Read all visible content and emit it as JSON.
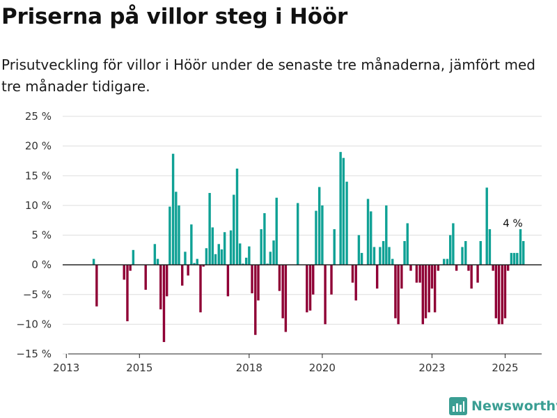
{
  "header": {
    "title": "Priserna på villor steg i Höör",
    "subtitle": "Prisutveckling för villor i Höör under de senaste tre månaderna, jämfört med tre månader tidigare."
  },
  "brand": {
    "name": "Newsworthy",
    "icon": "newsworthy-logo-icon",
    "color": "#3a9e93"
  },
  "colors": {
    "positive": "#0fa195",
    "negative": "#8f0035",
    "grid": "#dddddd",
    "axis": "#222222"
  },
  "chart_data": {
    "type": "bar",
    "title": "Priserna på villor steg i Höör",
    "subtitle": "Prisutveckling för villor i Höör under de senaste tre månaderna, jämfört med tre månader tidigare.",
    "xlabel": "",
    "ylabel": "",
    "ylim": [
      -15,
      25
    ],
    "xlim": [
      2012.9,
      2026.0
    ],
    "grid": true,
    "legend": "none",
    "y_ticks": [
      {
        "value": 25,
        "label": "25 %"
      },
      {
        "value": 20,
        "label": "20 %"
      },
      {
        "value": 15,
        "label": "15 %"
      },
      {
        "value": 10,
        "label": "10 %"
      },
      {
        "value": 5,
        "label": "5 %"
      },
      {
        "value": 0,
        "label": "0 %"
      },
      {
        "value": -5,
        "label": "−5 %"
      },
      {
        "value": -10,
        "label": "−10 %"
      },
      {
        "value": -15,
        "label": "−15 %"
      }
    ],
    "x_ticks": [
      {
        "value": 2013,
        "label": "2013"
      },
      {
        "value": 2015,
        "label": "2015"
      },
      {
        "value": 2018,
        "label": "2018"
      },
      {
        "value": 2020,
        "label": "2020"
      },
      {
        "value": 2023,
        "label": "2023"
      },
      {
        "value": 2025,
        "label": "2025"
      }
    ],
    "annotation": {
      "x": 2025.4,
      "y": 4,
      "label": "4 %"
    },
    "series": [
      {
        "values": [
          [
            2013.75,
            1
          ],
          [
            2013.83,
            -7
          ],
          [
            2014.58,
            -2.5
          ],
          [
            2014.67,
            -9.5
          ],
          [
            2014.75,
            -1
          ],
          [
            2014.83,
            2.5
          ],
          [
            2015.17,
            -4.2
          ],
          [
            2015.42,
            3.5
          ],
          [
            2015.5,
            1
          ],
          [
            2015.58,
            -7.5
          ],
          [
            2015.67,
            -13
          ],
          [
            2015.75,
            -5.3
          ],
          [
            2015.83,
            9.8
          ],
          [
            2015.92,
            18.7
          ],
          [
            2016.0,
            12.3
          ],
          [
            2016.08,
            10
          ],
          [
            2016.17,
            -3.5
          ],
          [
            2016.25,
            2.2
          ],
          [
            2016.33,
            -1.8
          ],
          [
            2016.42,
            6.8
          ],
          [
            2016.5,
            0.3
          ],
          [
            2016.58,
            1
          ],
          [
            2016.67,
            -8
          ],
          [
            2016.75,
            -0.3
          ],
          [
            2016.83,
            2.8
          ],
          [
            2016.92,
            12.1
          ],
          [
            2017.0,
            6.3
          ],
          [
            2017.08,
            1.8
          ],
          [
            2017.17,
            3.5
          ],
          [
            2017.25,
            2.6
          ],
          [
            2017.33,
            5.5
          ],
          [
            2017.42,
            -5.3
          ],
          [
            2017.5,
            5.8
          ],
          [
            2017.58,
            11.8
          ],
          [
            2017.67,
            16.2
          ],
          [
            2017.75,
            3.6
          ],
          [
            2017.83,
            0.2
          ],
          [
            2017.92,
            1.2
          ],
          [
            2018.0,
            3.1
          ],
          [
            2018.08,
            -4.8
          ],
          [
            2018.17,
            -11.8
          ],
          [
            2018.25,
            -6
          ],
          [
            2018.33,
            6
          ],
          [
            2018.42,
            8.7
          ],
          [
            2018.5,
            0.2
          ],
          [
            2018.58,
            2.2
          ],
          [
            2018.67,
            4.1
          ],
          [
            2018.75,
            11.3
          ],
          [
            2018.83,
            -4.4
          ],
          [
            2018.92,
            -9
          ],
          [
            2019.0,
            -11.3
          ],
          [
            2019.33,
            10.4
          ],
          [
            2019.58,
            -8
          ],
          [
            2019.67,
            -7.7
          ],
          [
            2019.75,
            -5
          ],
          [
            2019.83,
            9.1
          ],
          [
            2019.92,
            13.1
          ],
          [
            2020.0,
            10
          ],
          [
            2020.08,
            -10
          ],
          [
            2020.25,
            -5
          ],
          [
            2020.33,
            6
          ],
          [
            2020.5,
            19
          ],
          [
            2020.58,
            18
          ],
          [
            2020.67,
            14
          ],
          [
            2020.83,
            -3
          ],
          [
            2020.92,
            -6
          ],
          [
            2021.0,
            5
          ],
          [
            2021.08,
            2
          ],
          [
            2021.25,
            11.1
          ],
          [
            2021.33,
            9
          ],
          [
            2021.42,
            3
          ],
          [
            2021.5,
            -4
          ],
          [
            2021.58,
            3
          ],
          [
            2021.67,
            4
          ],
          [
            2021.75,
            10
          ],
          [
            2021.83,
            3
          ],
          [
            2021.92,
            1
          ],
          [
            2022.0,
            -9
          ],
          [
            2022.08,
            -10
          ],
          [
            2022.17,
            -4
          ],
          [
            2022.25,
            4
          ],
          [
            2022.33,
            7
          ],
          [
            2022.42,
            -1
          ],
          [
            2022.58,
            -3
          ],
          [
            2022.67,
            -3
          ],
          [
            2022.75,
            -10
          ],
          [
            2022.83,
            -9
          ],
          [
            2022.92,
            -8
          ],
          [
            2023.0,
            -4
          ],
          [
            2023.08,
            -8
          ],
          [
            2023.17,
            -1
          ],
          [
            2023.33,
            1
          ],
          [
            2023.42,
            1
          ],
          [
            2023.5,
            5
          ],
          [
            2023.58,
            7
          ],
          [
            2023.67,
            -1
          ],
          [
            2023.83,
            3
          ],
          [
            2023.92,
            4
          ],
          [
            2024.0,
            -1
          ],
          [
            2024.08,
            -4
          ],
          [
            2024.25,
            -3
          ],
          [
            2024.33,
            4
          ],
          [
            2024.5,
            13
          ],
          [
            2024.58,
            6
          ],
          [
            2024.67,
            -1
          ],
          [
            2024.75,
            -9
          ],
          [
            2024.83,
            -10
          ],
          [
            2024.92,
            -10
          ],
          [
            2025.0,
            -9
          ],
          [
            2025.08,
            -1
          ],
          [
            2025.17,
            2
          ],
          [
            2025.25,
            2
          ],
          [
            2025.33,
            2
          ],
          [
            2025.42,
            6
          ],
          [
            2025.5,
            4
          ]
        ]
      }
    ]
  }
}
